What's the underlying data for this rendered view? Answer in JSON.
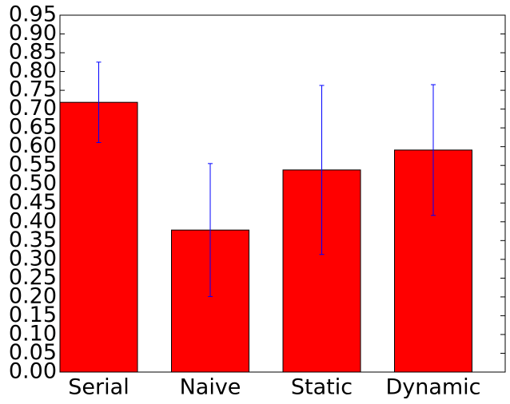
{
  "chart_data": {
    "type": "bar",
    "categories": [
      "Serial",
      "Naive",
      "Static",
      "Dynamic"
    ],
    "values": [
      0.718,
      0.378,
      0.538,
      0.591
    ],
    "errors": [
      0.107,
      0.177,
      0.225,
      0.174
    ],
    "color": "#ff0000",
    "error_color": "#0000ff",
    "ylim": [
      0,
      0.95
    ],
    "yticks": [
      {
        "value": 0,
        "label": "0.00"
      },
      0.05,
      {
        "value": 0.1,
        "label": "0.10"
      },
      0.15,
      {
        "value": 0.2,
        "label": "0.20"
      },
      0.25,
      {
        "value": 0.3,
        "label": "0.30"
      },
      0.35,
      {
        "value": 0.4,
        "label": "0.40"
      },
      0.45,
      {
        "value": 0.5,
        "label": "0.50"
      },
      0.55,
      {
        "value": 0.6,
        "label": "0.60"
      },
      0.65,
      {
        "value": 0.7,
        "label": "0.70"
      },
      0.75,
      {
        "value": 0.8,
        "label": "0.80"
      },
      0.85,
      {
        "value": 0.9,
        "label": "0.90"
      },
      0.95
    ],
    "grid": false
  }
}
